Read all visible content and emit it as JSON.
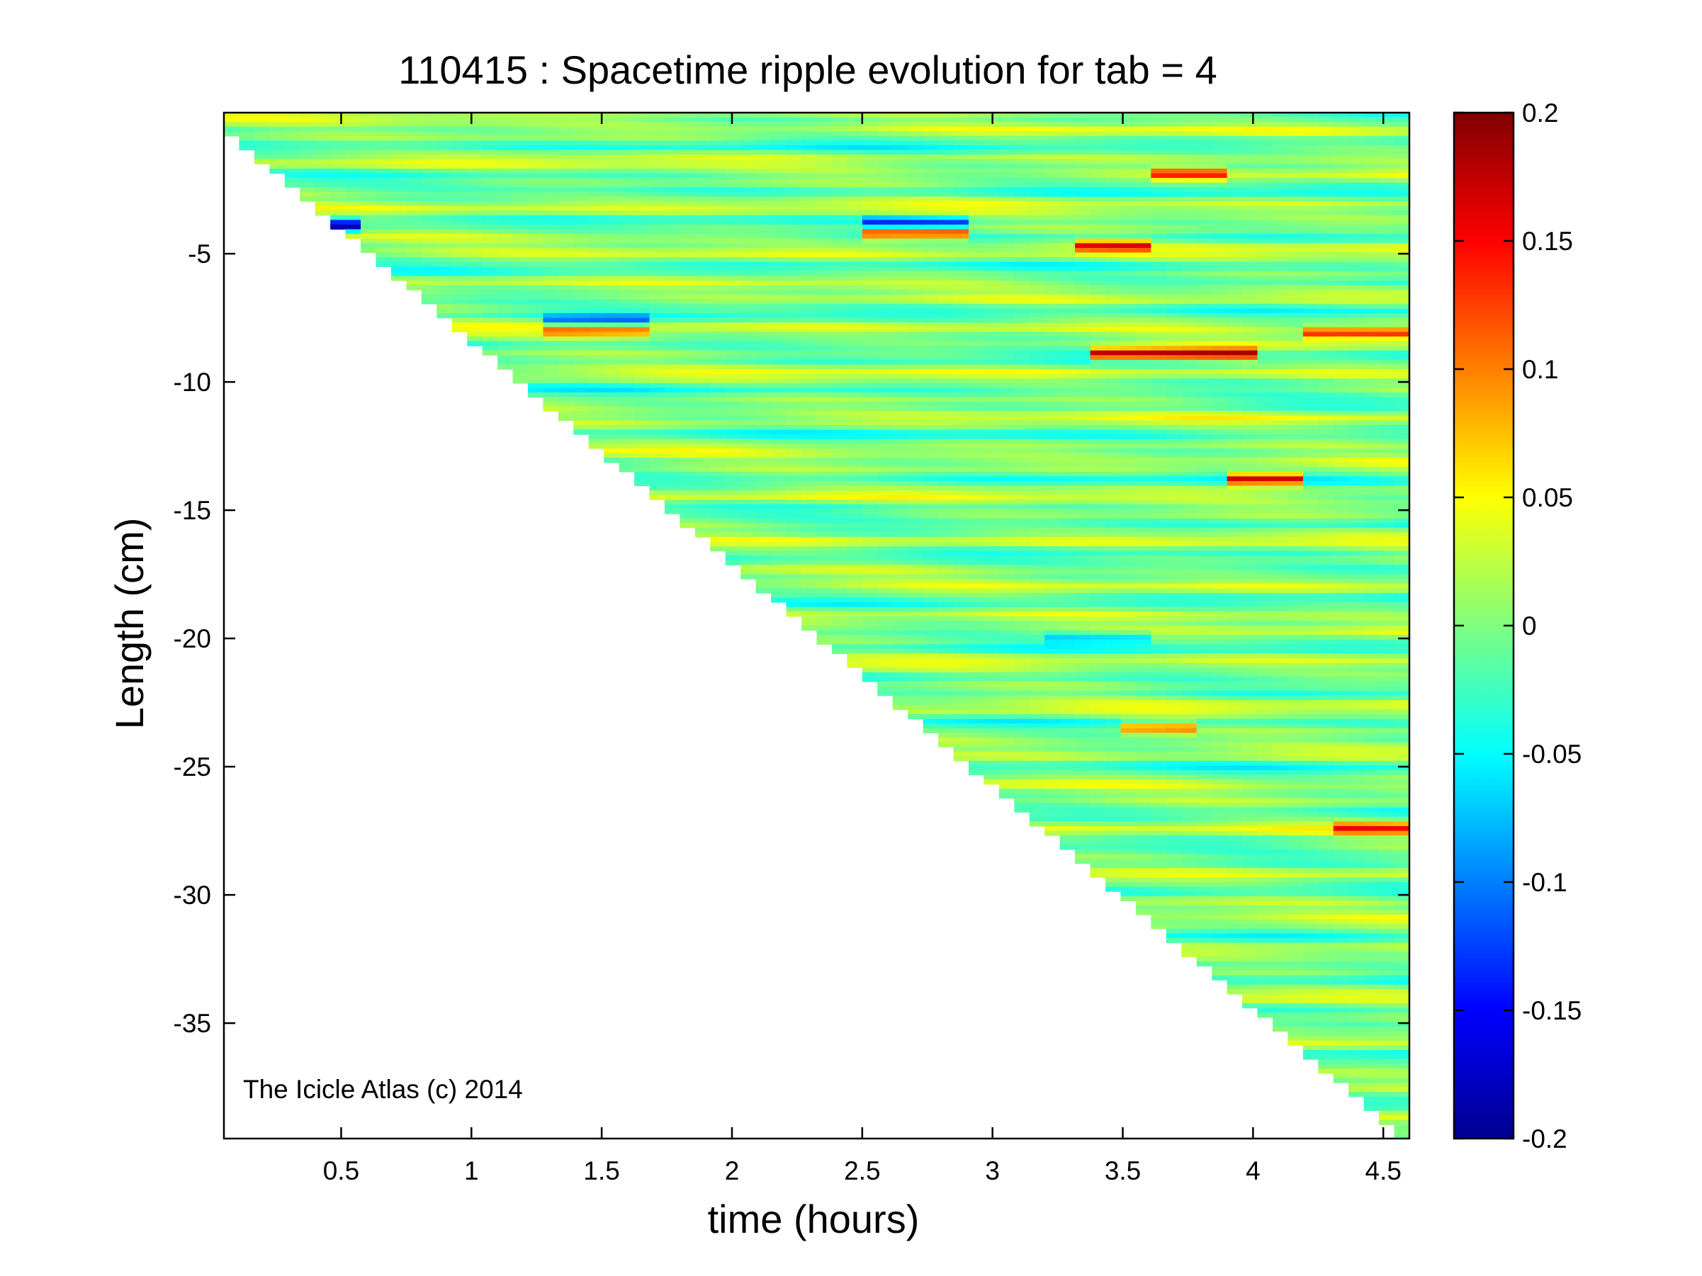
{
  "chart_data": {
    "type": "heatmap",
    "title": "110415 : Spacetime ripple evolution for tab = 4",
    "xlabel": "time (hours)",
    "ylabel": "Length (cm)",
    "xlim": [
      0.05,
      4.6
    ],
    "ylim": [
      -39.5,
      0.5
    ],
    "xticks": [
      0.5,
      1,
      1.5,
      2,
      2.5,
      3,
      3.5,
      4,
      4.5
    ],
    "xtick_labels": [
      "0.5",
      "1",
      "1.5",
      "2",
      "2.5",
      "3",
      "3.5",
      "4",
      "4.5"
    ],
    "yticks": [
      -5,
      -10,
      -15,
      -20,
      -25,
      -30,
      -35
    ],
    "ytick_labels": [
      "-5",
      "-10",
      "-15",
      "-20",
      "-25",
      "-30",
      "-35"
    ],
    "colorbar": {
      "colormap": "jet",
      "clim": [
        -0.2,
        0.2
      ],
      "ticks": [
        0.2,
        0.15,
        0.1,
        0.05,
        0,
        -0.05,
        -0.1,
        -0.15,
        -0.2
      ],
      "tick_labels": [
        "0.2",
        "0.15",
        "0.1",
        "0.05",
        "0",
        "-0.05",
        "-0.1",
        "-0.15",
        "-0.2"
      ]
    },
    "grid": false,
    "data_boundary": {
      "description": "ripple data exists only where length is above the growth front",
      "front_start": {
        "time": 0.05,
        "length": 0
      },
      "front_end": {
        "time": 4.6,
        "length": -39.5
      }
    },
    "features": [
      {
        "time_start": 2.5,
        "time_end": 2.9,
        "length": -4.2,
        "value": 0.15
      },
      {
        "time_start": 2.5,
        "time_end": 2.9,
        "length": -3.8,
        "value": -0.12
      },
      {
        "time_start": 3.4,
        "time_end": 4.0,
        "length": -8.9,
        "value": 0.2
      },
      {
        "time_start": 3.3,
        "time_end": 3.6,
        "length": -4.7,
        "value": 0.15
      },
      {
        "time_start": 1.3,
        "time_end": 1.7,
        "length": -8.0,
        "value": 0.1
      },
      {
        "time_start": 1.3,
        "time_end": 1.7,
        "length": -7.6,
        "value": -0.1
      },
      {
        "time_start": 3.9,
        "time_end": 4.2,
        "length": -13.8,
        "value": 0.2
      },
      {
        "time_start": 4.2,
        "time_end": 4.6,
        "length": -8.1,
        "value": 0.13
      },
      {
        "time_start": 4.3,
        "time_end": 4.6,
        "length": -27.4,
        "value": 0.13
      },
      {
        "time_start": 3.6,
        "time_end": 3.9,
        "length": -1.9,
        "value": 0.13
      },
      {
        "time_start": 0.4,
        "time_end": 0.55,
        "length": -3.9,
        "value": -0.18
      },
      {
        "time_start": 3.2,
        "time_end": 3.6,
        "length": -20.0,
        "value": -0.06
      },
      {
        "time_start": 3.5,
        "time_end": 3.8,
        "length": -23.5,
        "value": 0.1
      }
    ]
  },
  "watermark": "The Icicle Atlas (c) 2014"
}
